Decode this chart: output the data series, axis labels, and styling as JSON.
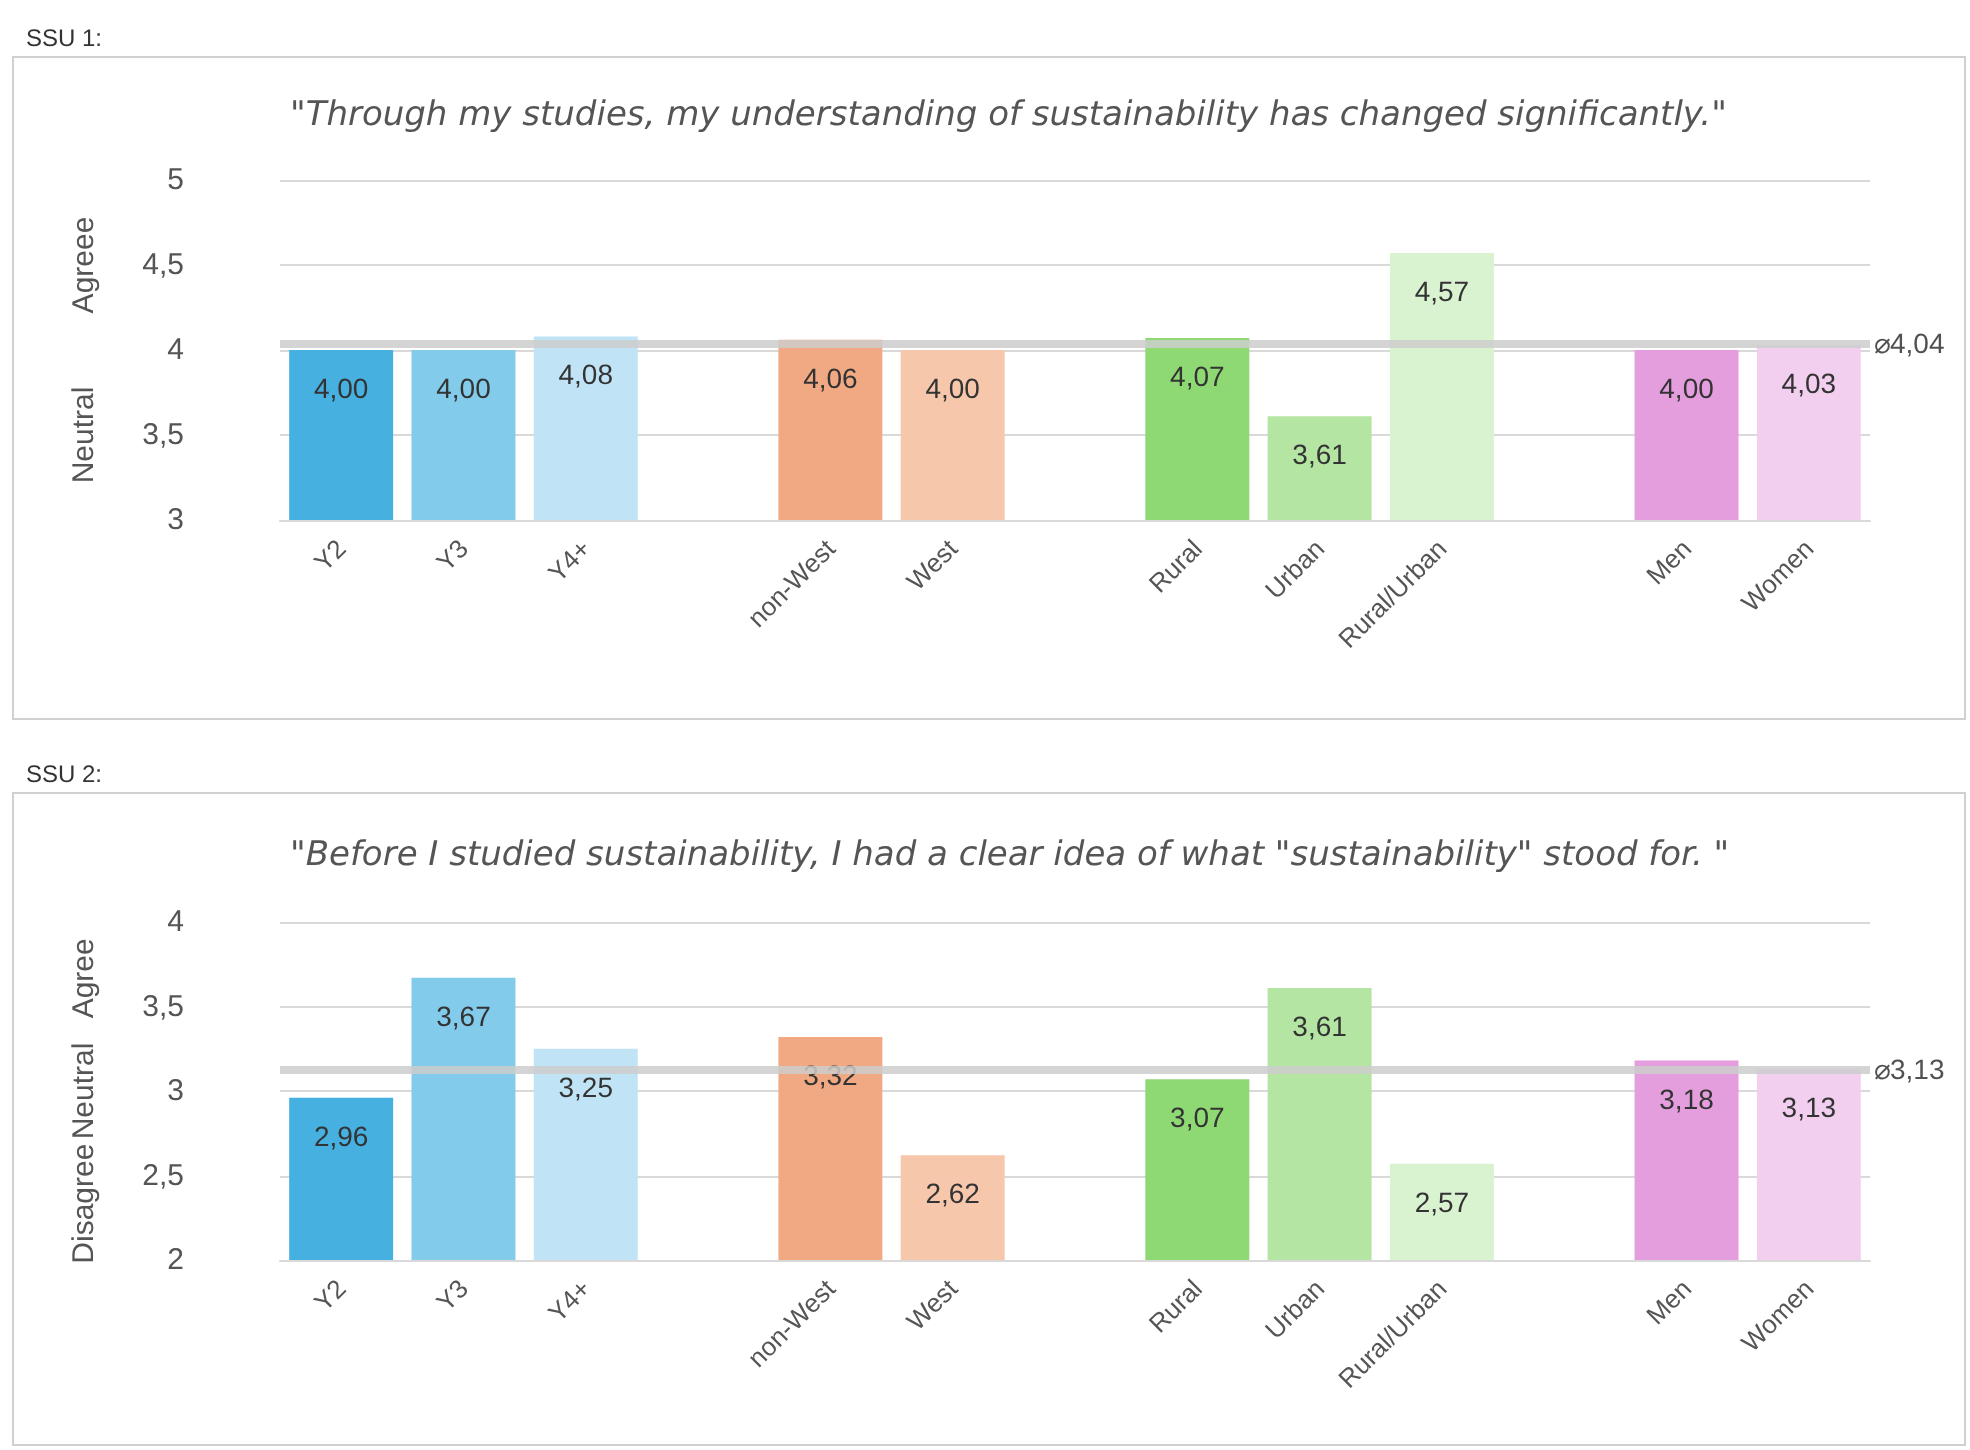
{
  "chart_data": [
    {
      "type": "bar",
      "title": "SSU 1:",
      "subtitle": "\"Through my studies, my understanding of sustainability has changed significantly.\"",
      "categories": [
        "Y2",
        "Y3",
        "Y4+",
        null,
        "non-West",
        "West",
        null,
        "Rural",
        "Urban",
        "Rural/Urban",
        null,
        "Men",
        "Women"
      ],
      "values": [
        4.0,
        4.0,
        4.08,
        null,
        4.06,
        4.0,
        null,
        4.07,
        3.61,
        4.57,
        null,
        4.0,
        4.03
      ],
      "value_labels": [
        "4,00",
        "4,00",
        "4,08",
        null,
        "4,06",
        "4,00",
        null,
        "4,07",
        "3,61",
        "4,57",
        null,
        "4,00",
        "4,03"
      ],
      "colors": [
        "#46b0e1",
        "#83cbeb",
        "#c0e4f5",
        null,
        "#f1a983",
        "#f7c7ac",
        null,
        "#8ed973",
        "#b4e5a2",
        "#d9f2d0",
        null,
        "#e49edd",
        "#f2cfee"
      ],
      "ylim": [
        3,
        5
      ],
      "yticks": [
        3,
        {
          "value": 3.5,
          "label": "3,5"
        },
        4,
        {
          "value": 4.5,
          "label": "4,5"
        },
        5
      ],
      "grid": "y",
      "ref_lines": [
        {
          "axis": "y",
          "value": 4.04,
          "label": "⌀4,04",
          "color": "#cccccc"
        }
      ],
      "annotations": [
        "Neutral",
        "Agreee"
      ]
    },
    {
      "type": "bar",
      "title": "SSU 2:",
      "subtitle": "\"Before I studied sustainability, I had a clear idea of what \"sustainability\" stood for. \"",
      "categories": [
        "Y2",
        "Y3",
        "Y4+",
        null,
        "non-West",
        "West",
        null,
        "Rural",
        "Urban",
        "Rural/Urban",
        null,
        "Men",
        "Women"
      ],
      "values": [
        2.96,
        3.67,
        3.25,
        null,
        3.32,
        2.62,
        null,
        3.07,
        3.61,
        2.57,
        null,
        3.18,
        3.13
      ],
      "value_labels": [
        "2,96",
        "3,67",
        "3,25",
        null,
        "3,32",
        "2,62",
        null,
        "3,07",
        "3,61",
        "2,57",
        null,
        "3,18",
        "3,13"
      ],
      "colors": [
        "#46b0e1",
        "#83cbeb",
        "#c0e4f5",
        null,
        "#f1a983",
        "#f7c7ac",
        null,
        "#8ed973",
        "#b4e5a2",
        "#d9f2d0",
        null,
        "#e49edd",
        "#f2cfee"
      ],
      "ylim": [
        2,
        4
      ],
      "yticks": [
        2,
        {
          "value": 2.5,
          "label": "2,5"
        },
        3,
        {
          "value": 3.5,
          "label": "3,5"
        },
        4
      ],
      "grid": "y",
      "ref_lines": [
        {
          "axis": "y",
          "value": 3.13,
          "label": "⌀3,13",
          "color": "#cccccc"
        }
      ],
      "annotations": [
        "Disagree",
        "Neutral",
        "Agree"
      ]
    }
  ]
}
